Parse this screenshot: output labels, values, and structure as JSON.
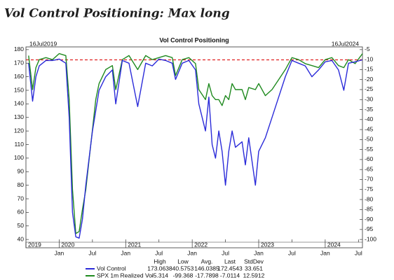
{
  "chart_data": {
    "type": "line",
    "title": "Vol Control Positioning: Max long",
    "subtitle": "Vol Control Positioning",
    "annotations": [
      "16Jul2019",
      "16Jul2024"
    ],
    "x": [
      2019.54,
      2019.6,
      2019.65,
      2019.7,
      2019.8,
      2019.9,
      2020.0,
      2020.1,
      2020.15,
      2020.2,
      2020.25,
      2020.3,
      2020.35,
      2020.4,
      2020.45,
      2020.5,
      2020.55,
      2020.6,
      2020.7,
      2020.8,
      2020.85,
      2020.95,
      2021.05,
      2021.18,
      2021.3,
      2021.4,
      2021.5,
      2021.6,
      2021.7,
      2021.75,
      2021.85,
      2021.95,
      2022.05,
      2022.1,
      2022.2,
      2022.25,
      2022.3,
      2022.35,
      2022.4,
      2022.45,
      2022.5,
      2022.55,
      2022.6,
      2022.65,
      2022.75,
      2022.8,
      2022.85,
      2022.95,
      2023.0,
      2023.1,
      2023.2,
      2023.3,
      2023.4,
      2023.5,
      2023.6,
      2023.7,
      2023.8,
      2023.9,
      2024.0,
      2024.1,
      2024.2,
      2024.28,
      2024.35,
      2024.45,
      2024.56
    ],
    "series": [
      {
        "name": "Vol Control",
        "color": "#2b2bd9",
        "axis": "y",
        "values": [
          170,
          142,
          160,
          168,
          172,
          172,
          173,
          170,
          130,
          60,
          42,
          41,
          55,
          80,
          100,
          120,
          135,
          150,
          160,
          165,
          140,
          172,
          170,
          138,
          170,
          168,
          173,
          172,
          170,
          158,
          170,
          172,
          165,
          140,
          120,
          145,
          110,
          100,
          120,
          105,
          80,
          105,
          120,
          108,
          112,
          95,
          115,
          80,
          105,
          115,
          130,
          145,
          160,
          172,
          170,
          168,
          160,
          165,
          171,
          172,
          165,
          150,
          170,
          171,
          172.45
        ],
        "stats": [
          173.0638,
          40.5753,
          146.0385,
          172.4543,
          33.651
        ]
      },
      {
        "name": "SPX 1m Realized Vol",
        "color": "#1f8a1f",
        "axis": "y2",
        "values": [
          -8,
          -25,
          -14,
          -10,
          -9,
          -10,
          -7,
          -8,
          -30,
          -75,
          -97,
          -96,
          -85,
          -75,
          -60,
          -45,
          -30,
          -22,
          -15,
          -13,
          -25,
          -10,
          -8,
          -15,
          -8,
          -10,
          -9,
          -8,
          -9,
          -18,
          -10,
          -9,
          -12,
          -25,
          -30,
          -22,
          -28,
          -30,
          -30,
          -33,
          -28,
          -30,
          -22,
          -25,
          -25,
          -30,
          -24,
          -25,
          -22,
          -28,
          -25,
          -20,
          -15,
          -9,
          -10,
          -12,
          -13,
          -14,
          -10,
          -9,
          -13,
          -14,
          -10,
          -12,
          -7
        ],
        "stats": [
          -5.314,
          -99.368,
          -17.7898,
          -7.0114,
          12.5912
        ]
      }
    ],
    "stats_headers": [
      "High",
      "Low",
      "Avg.",
      "Last",
      "StdDev"
    ],
    "ref_line": 172.4543,
    "ref_line_color": "#e02020",
    "xlim": [
      2019.5,
      2024.56
    ],
    "xticks": [
      {
        "value": 2020,
        "label": "Jan"
      },
      {
        "value": 2020.5,
        "label": "Jul"
      },
      {
        "value": 2021,
        "label": "Jan"
      },
      {
        "value": 2021.5,
        "label": "Jul"
      },
      {
        "value": 2022,
        "label": "Jan"
      },
      {
        "value": 2022.5,
        "label": "Jul"
      },
      {
        "value": 2023,
        "label": "Jan"
      },
      {
        "value": 2023.5,
        "label": "Jul"
      },
      {
        "value": 2024,
        "label": "Jan"
      },
      {
        "value": 2024.5,
        "label": "Jul"
      }
    ],
    "year_labels": [
      2019,
      2020,
      2021,
      2022,
      2023,
      2024
    ],
    "ylim": [
      38,
      182
    ],
    "yticks": [
      40,
      50,
      60,
      70,
      80,
      90,
      100,
      110,
      120,
      130,
      140,
      150,
      160,
      170,
      180
    ],
    "y2lim": [
      -101.36,
      -3.64
    ],
    "y2ticks": [
      -5,
      -10,
      -15,
      -20,
      -25,
      -30,
      -35,
      -40,
      -45,
      -50,
      -55,
      -60,
      -65,
      -70,
      -75,
      -80,
      -85,
      -90,
      -95,
      -100
    ]
  }
}
